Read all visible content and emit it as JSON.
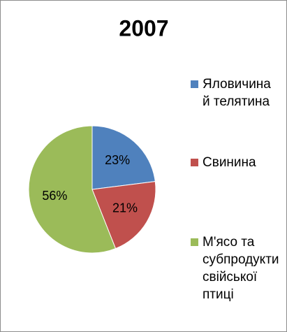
{
  "chart_data": {
    "type": "pie",
    "title": "2007",
    "categories": [
      "Яловичина й телятина",
      "Свинина",
      "М'ясо та субпродукти свійської птиці"
    ],
    "values": [
      23,
      21,
      56
    ],
    "value_labels": [
      "23%",
      "21%",
      "56%"
    ],
    "colors": [
      "#4f81bd",
      "#c0504d",
      "#9bbb59"
    ],
    "legend": "right"
  }
}
